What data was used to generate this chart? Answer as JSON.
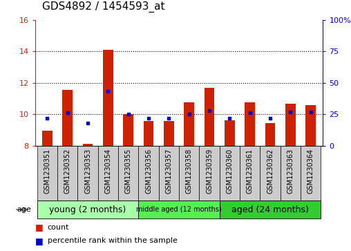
{
  "title": "GDS4892 / 1454593_at",
  "samples": [
    "GSM1230351",
    "GSM1230352",
    "GSM1230353",
    "GSM1230354",
    "GSM1230355",
    "GSM1230356",
    "GSM1230357",
    "GSM1230358",
    "GSM1230359",
    "GSM1230360",
    "GSM1230361",
    "GSM1230362",
    "GSM1230363",
    "GSM1230364"
  ],
  "count_values": [
    8.95,
    11.55,
    8.1,
    14.1,
    10.0,
    9.55,
    9.55,
    10.75,
    11.7,
    9.6,
    10.75,
    9.45,
    10.65,
    10.6
  ],
  "percentile_values": [
    22,
    26,
    18,
    43,
    25,
    22,
    22,
    25,
    28,
    22,
    26,
    22,
    27,
    27
  ],
  "ymin": 8,
  "ymax": 16,
  "yticks_left": [
    8,
    10,
    12,
    14,
    16
  ],
  "yticks_right": [
    0,
    25,
    50,
    75,
    100
  ],
  "bar_color": "#cc2200",
  "dot_color": "#0000cc",
  "bar_width": 0.5,
  "groups": [
    {
      "label": "young (2 months)",
      "start": 0,
      "end": 5
    },
    {
      "label": "middle aged (12 months)",
      "start": 5,
      "end": 9
    },
    {
      "label": "aged (24 months)",
      "start": 9,
      "end": 14
    }
  ],
  "group_colors": [
    "#aaffaa",
    "#55ee55",
    "#33cc33"
  ],
  "right_axis_color": "#0000cc",
  "left_axis_color": "#cc2200",
  "tick_label_bg": "#cccccc",
  "legend_count_color": "#cc2200",
  "legend_pct_color": "#0000cc",
  "grid_color": "black",
  "title_fontsize": 11,
  "label_fontsize": 7,
  "group_label_fontsize": 9,
  "group_label_fontsize_mid": 7
}
